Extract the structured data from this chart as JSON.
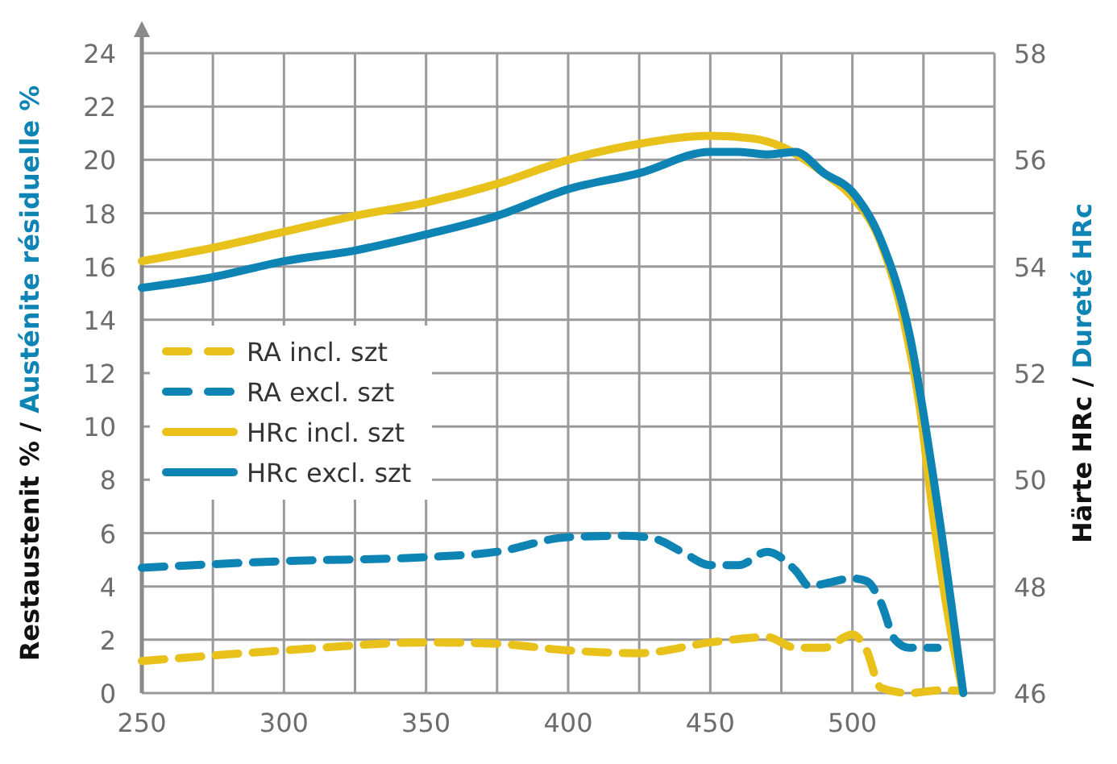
{
  "chart_data": {
    "type": "line",
    "ylabel": "Restaustenit % / Austénite résiduelle %",
    "y2label": "Härte HRc / Dureté HRc",
    "xlim": [
      250,
      550
    ],
    "xticks": [
      250,
      {
        "value": 275,
        "label": null
      },
      300,
      {
        "value": 325,
        "label": null
      },
      350,
      {
        "value": 375,
        "label": null
      },
      400,
      {
        "value": 425,
        "label": null
      },
      450,
      {
        "value": 475,
        "label": null
      },
      500,
      {
        "value": 525,
        "label": null
      },
      {
        "value": 550,
        "label": null
      }
    ],
    "ylim": [
      0,
      24
    ],
    "yticks": [
      0,
      2,
      4,
      6,
      8,
      10,
      12,
      14,
      16,
      18,
      20,
      22,
      24
    ],
    "y2lim": [
      46,
      58
    ],
    "y2ticks": [
      46,
      48,
      50,
      52,
      54,
      56,
      58
    ],
    "grid": true,
    "legend": "left",
    "series": [
      {
        "name": "RA incl. szt",
        "color": "#e8c21a",
        "line_style": "dashed",
        "x": [
          250,
          300,
          350,
          375,
          400,
          425,
          450,
          470,
          480,
          490,
          500,
          505,
          510,
          520,
          530,
          537
        ],
        "values": [
          1.2,
          1.6,
          1.9,
          1.85,
          1.6,
          1.5,
          1.9,
          2.1,
          1.7,
          1.7,
          2.2,
          1.6,
          0.2,
          0.0,
          0.1,
          0.1
        ]
      },
      {
        "name": "RA excl. szt",
        "color": "#0e84b5",
        "line_style": "dashed",
        "x": [
          250,
          300,
          350,
          375,
          400,
          420,
          430,
          440,
          450,
          460,
          470,
          480,
          485,
          490,
          500,
          505,
          510,
          515,
          520,
          530
        ],
        "values": [
          4.7,
          4.95,
          5.1,
          5.3,
          5.85,
          5.9,
          5.8,
          5.3,
          4.8,
          4.8,
          5.3,
          4.6,
          4.0,
          4.1,
          4.3,
          4.2,
          3.4,
          2.0,
          1.7,
          1.7
        ]
      },
      {
        "name": "HRc incl. szt",
        "color": "#e8c21a",
        "line_style": "solid",
        "axis": "y2",
        "x": [
          250,
          275,
          300,
          325,
          350,
          375,
          400,
          425,
          450,
          465,
          475,
          490,
          500,
          510,
          518,
          524,
          528,
          532,
          536,
          539
        ],
        "values": [
          54.1,
          54.35,
          54.65,
          54.95,
          55.2,
          55.55,
          56.0,
          56.3,
          56.45,
          56.4,
          56.25,
          55.75,
          55.3,
          54.45,
          53.0,
          51.25,
          49.5,
          48.0,
          46.75,
          46.0
        ]
      },
      {
        "name": "HRc excl. szt",
        "color": "#0e84b5",
        "line_style": "solid",
        "axis": "y2",
        "x": [
          250,
          275,
          300,
          325,
          350,
          375,
          400,
          425,
          450,
          460,
          470,
          480,
          490,
          500,
          510,
          520,
          530,
          539
        ],
        "values": [
          53.6,
          53.8,
          54.1,
          54.3,
          54.6,
          54.95,
          55.45,
          55.75,
          56.15,
          56.15,
          56.1,
          56.15,
          55.75,
          55.4,
          54.5,
          52.75,
          49.5,
          46.0
        ]
      }
    ]
  }
}
